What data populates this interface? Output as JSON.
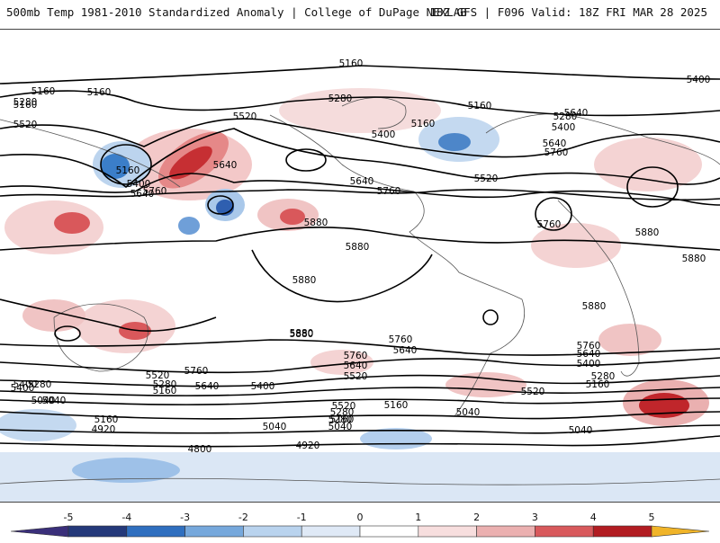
{
  "header": {
    "title": "500mb Temp 1981-2010 Standardized Anomaly | College of DuPage NEXLAB",
    "valid": "18Z GFS | F096 Valid: 18Z FRI MAR 28 2025"
  },
  "map": {
    "contour_labels": [
      "5160",
      "5160",
      "5160",
      "5280",
      "5520",
      "5160",
      "5400",
      "5640",
      "5760",
      "5640",
      "5520",
      "5280",
      "5400",
      "5160",
      "5160",
      "5280",
      "5400",
      "5640",
      "5760",
      "5520",
      "5640",
      "5760",
      "5160",
      "5400",
      "5640",
      "5760",
      "5880",
      "5880",
      "5880",
      "5880",
      "5880",
      "5880",
      "5880",
      "5760",
      "5640",
      "5520",
      "5400",
      "5280",
      "5160",
      "5040",
      "4920",
      "4800",
      "4920",
      "5040",
      "5280",
      "5520",
      "5400",
      "5640",
      "5760",
      "5880",
      "5160",
      "5280",
      "5040",
      "5160",
      "5520",
      "5760",
      "5640",
      "5400",
      "5280",
      "5040",
      "5160",
      "5040",
      "5400",
      "5280",
      "5160",
      "5040",
      "5520",
      "5640",
      "5760"
    ]
  },
  "colorbar": {
    "labels": [
      "-5",
      "-4",
      "-3",
      "-2",
      "-1",
      "0",
      "1",
      "2",
      "3",
      "4",
      "5"
    ],
    "colors": [
      "#3a2f7a",
      "#24397a",
      "#2f6fbf",
      "#76a8dc",
      "#b9d3ee",
      "#dfe9f6",
      "#ffffff",
      "#f7dede",
      "#ebb0b0",
      "#d8595c",
      "#b21c22",
      "#6e0d10",
      "#f0b429"
    ]
  }
}
